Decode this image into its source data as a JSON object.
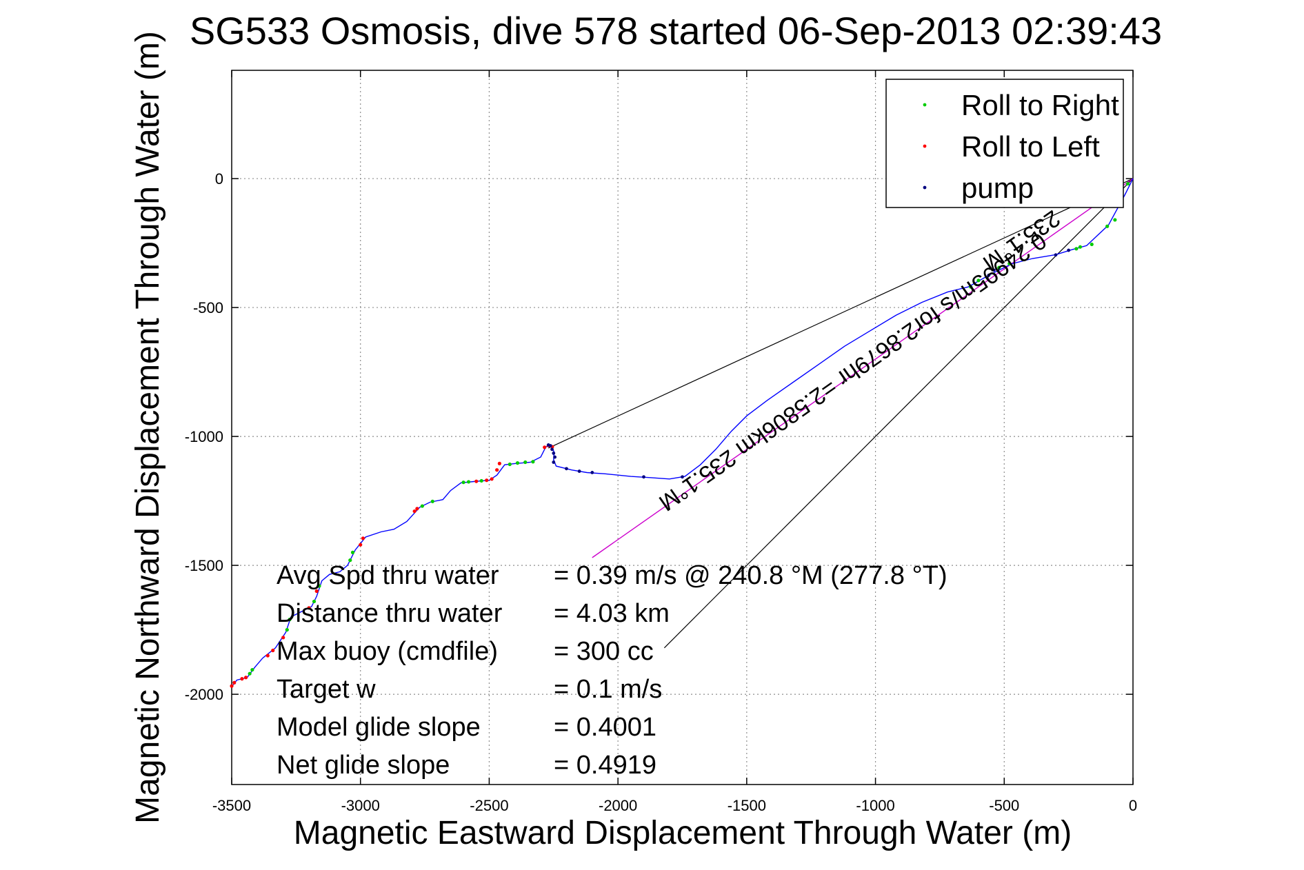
{
  "chart_data": {
    "type": "line",
    "title": "SG533 Osmosis, dive 578 started 06-Sep-2013 02:39:43",
    "xlabel": "Magnetic Eastward Displacement Through Water (m)",
    "ylabel": "Magnetic Northward Displacement Through Water (m)",
    "xlim": [
      -3500,
      0
    ],
    "ylim": [
      -2350,
      420
    ],
    "xticks": [
      -3500,
      -3000,
      -2500,
      -2000,
      -1500,
      -1000,
      -500,
      0
    ],
    "yticks": [
      0,
      -500,
      -1000,
      -1500,
      -2000
    ],
    "grid": true,
    "legend": {
      "placement": "top-right",
      "entries": [
        {
          "label": "Roll to Right",
          "color": "#00cc00"
        },
        {
          "label": "Roll to Left",
          "color": "#ff0000"
        },
        {
          "label": "pump",
          "color": "#000080"
        }
      ]
    },
    "track_color": "#0000ff",
    "track": [
      [
        0,
        0
      ],
      [
        -30,
        -60
      ],
      [
        -95,
        -180
      ],
      [
        -180,
        -260
      ],
      [
        -235,
        -275
      ],
      [
        -300,
        -295
      ],
      [
        -390,
        -310
      ],
      [
        -470,
        -330
      ],
      [
        -560,
        -375
      ],
      [
        -640,
        -420
      ],
      [
        -720,
        -440
      ],
      [
        -820,
        -480
      ],
      [
        -920,
        -530
      ],
      [
        -1020,
        -590
      ],
      [
        -1120,
        -650
      ],
      [
        -1220,
        -720
      ],
      [
        -1320,
        -790
      ],
      [
        -1420,
        -860
      ],
      [
        -1500,
        -920
      ],
      [
        -1560,
        -980
      ],
      [
        -1620,
        -1050
      ],
      [
        -1680,
        -1110
      ],
      [
        -1740,
        -1155
      ],
      [
        -1800,
        -1165
      ],
      [
        -1870,
        -1160
      ],
      [
        -1950,
        -1155
      ],
      [
        -2050,
        -1145
      ],
      [
        -2120,
        -1140
      ],
      [
        -2180,
        -1130
      ],
      [
        -2240,
        -1115
      ],
      [
        -2250,
        -1090
      ],
      [
        -2248,
        -1060
      ],
      [
        -2260,
        -1035
      ],
      [
        -2280,
        -1040
      ],
      [
        -2300,
        -1080
      ],
      [
        -2340,
        -1100
      ],
      [
        -2400,
        -1105
      ],
      [
        -2440,
        -1110
      ],
      [
        -2470,
        -1150
      ],
      [
        -2500,
        -1170
      ],
      [
        -2560,
        -1175
      ],
      [
        -2610,
        -1180
      ],
      [
        -2650,
        -1210
      ],
      [
        -2680,
        -1245
      ],
      [
        -2730,
        -1255
      ],
      [
        -2770,
        -1275
      ],
      [
        -2820,
        -1330
      ],
      [
        -2870,
        -1360
      ],
      [
        -2920,
        -1370
      ],
      [
        -2980,
        -1390
      ],
      [
        -3020,
        -1440
      ],
      [
        -3050,
        -1500
      ],
      [
        -3080,
        -1525
      ],
      [
        -3120,
        -1535
      ],
      [
        -3150,
        -1560
      ],
      [
        -3170,
        -1620
      ],
      [
        -3190,
        -1660
      ],
      [
        -3230,
        -1680
      ],
      [
        -3270,
        -1700
      ],
      [
        -3290,
        -1760
      ],
      [
        -3330,
        -1820
      ],
      [
        -3380,
        -1860
      ],
      [
        -3410,
        -1895
      ],
      [
        -3440,
        -1935
      ],
      [
        -3480,
        -1945
      ],
      [
        -3500,
        -1970
      ]
    ],
    "roll_right_points": [
      [
        -20,
        -20
      ],
      [
        -70,
        -160
      ],
      [
        -100,
        -185
      ],
      [
        -160,
        -255
      ],
      [
        -205,
        -265
      ],
      [
        -220,
        -272
      ],
      [
        -480,
        -330
      ],
      [
        -520,
        -345
      ],
      [
        -600,
        -395
      ],
      [
        -630,
        -420
      ],
      [
        -2330,
        -1098
      ],
      [
        -2360,
        -1100
      ],
      [
        -2390,
        -1103
      ],
      [
        -2420,
        -1108
      ],
      [
        -2530,
        -1172
      ],
      [
        -2580,
        -1176
      ],
      [
        -2600,
        -1178
      ],
      [
        -2720,
        -1252
      ],
      [
        -2760,
        -1270
      ],
      [
        -3030,
        -1450
      ],
      [
        -3040,
        -1480
      ],
      [
        -3160,
        -1580
      ],
      [
        -3180,
        -1640
      ],
      [
        -3275,
        -1710
      ],
      [
        -3285,
        -1750
      ],
      [
        -3420,
        -1905
      ],
      [
        -3430,
        -1920
      ]
    ],
    "roll_left_points": [
      [
        -2255,
        -1040
      ],
      [
        -2270,
        -1035
      ],
      [
        -2285,
        -1042
      ],
      [
        -2460,
        -1105
      ],
      [
        -2470,
        -1130
      ],
      [
        -2490,
        -1165
      ],
      [
        -2510,
        -1170
      ],
      [
        -2550,
        -1174
      ],
      [
        -2780,
        -1280
      ],
      [
        -2790,
        -1290
      ],
      [
        -2990,
        -1395
      ],
      [
        -3000,
        -1420
      ],
      [
        -3170,
        -1600
      ],
      [
        -3200,
        -1665
      ],
      [
        -3300,
        -1780
      ],
      [
        -3340,
        -1830
      ],
      [
        -3360,
        -1850
      ],
      [
        -3445,
        -1935
      ],
      [
        -3460,
        -1940
      ],
      [
        -3490,
        -1955
      ],
      [
        -3500,
        -1968
      ]
    ],
    "pump_points": [
      [
        -2250,
        -1100
      ],
      [
        -2245,
        -1080
      ],
      [
        -2250,
        -1065
      ],
      [
        -2256,
        -1050
      ],
      [
        -2262,
        -1036
      ],
      [
        -2270,
        -1033
      ],
      [
        -2200,
        -1125
      ],
      [
        -2150,
        -1135
      ],
      [
        -2100,
        -1140
      ],
      [
        -1900,
        -1157
      ],
      [
        -1750,
        -1157
      ],
      [
        -540,
        -355
      ],
      [
        -560,
        -375
      ],
      [
        -300,
        -296
      ],
      [
        -250,
        -278
      ]
    ],
    "current_vector_color": "#cc00cc",
    "current_vector": [
      [
        0,
        0
      ],
      [
        -2100,
        -1470
      ]
    ],
    "cone_lines": [
      [
        [
          0,
          0
        ],
        [
          -2270,
          -1045
        ]
      ],
      [
        [
          0,
          0
        ],
        [
          -1820,
          -1820
        ]
      ]
    ],
    "annotations": {
      "current": "0.24995m/s for2.8679hr =2.5806km 235.1°M",
      "heading_label": "235.1°M"
    },
    "stats": [
      {
        "label": "Avg Spd thru water",
        "value": "=  0.39 m/s @ 240.8 °M (277.8 °T)"
      },
      {
        "label": "Distance thru water",
        "value": "=  4.03 km"
      },
      {
        "label": "Max buoy (cmdfile)",
        "value": "= 300 cc"
      },
      {
        "label": "Target w",
        "value": "= 0.1 m/s"
      },
      {
        "label": "Model glide slope",
        "value": "= 0.4001"
      },
      {
        "label": "Net glide slope",
        "value": "= 0.4919"
      }
    ]
  }
}
